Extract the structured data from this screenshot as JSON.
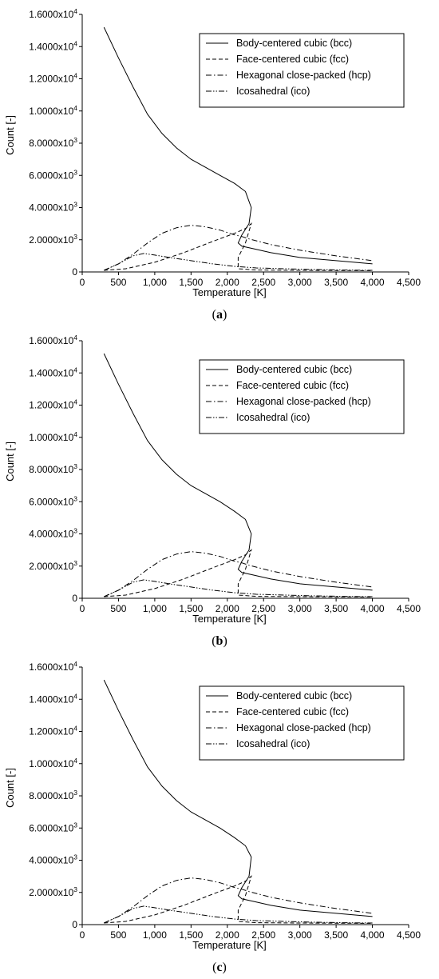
{
  "chart_data": [
    {
      "type": "line",
      "caption": "a",
      "xlabel": "Temperature [K]",
      "ylabel": "Count [-]",
      "xlim": [
        0,
        4500
      ],
      "ylim": [
        0,
        16000
      ],
      "xticks": [
        "0",
        "500",
        "1,000",
        "1,500",
        "2,000",
        "2,500",
        "3,000",
        "3,500",
        "4,000",
        "4,500"
      ],
      "yticks": [
        "0",
        "2.0000x10",
        "4.0000x10",
        "6.0000x10",
        "8.0000x10",
        "1.0000x10",
        "1.2000x10",
        "1.4000x10",
        "1.6000x10"
      ],
      "ytick_exponents": [
        "",
        "3",
        "3",
        "3",
        "3",
        "4",
        "4",
        "4",
        "4"
      ],
      "legend_position": "top-right",
      "grid": false,
      "series": [
        {
          "name": "Body-centered cubic (bcc)",
          "dash": "solid",
          "x": [
            300,
            500,
            700,
            900,
            1100,
            1300,
            1500,
            1700,
            1900,
            2100,
            2250,
            2330,
            2300,
            2200,
            2150,
            2200,
            2350,
            2600,
            3000,
            3500,
            4000
          ],
          "y": [
            15200,
            13300,
            11500,
            9800,
            8600,
            7700,
            7000,
            6500,
            6000,
            5500,
            5000,
            4000,
            3000,
            2300,
            1800,
            1600,
            1450,
            1200,
            900,
            700,
            500
          ]
        },
        {
          "name": "Face-centered cubic (fcc)",
          "dash": "dashed",
          "x": [
            300,
            600,
            1000,
            1400,
            1800,
            2100,
            2250,
            2330,
            2250,
            2150,
            2150,
            2400,
            3000,
            4000
          ],
          "y": [
            100,
            200,
            600,
            1200,
            1900,
            2400,
            2700,
            3000,
            1800,
            900,
            200,
            120,
            100,
            80
          ]
        },
        {
          "name": "Hexagonal close-packed (hcp)",
          "dash": "dashdot",
          "x": [
            300,
            500,
            700,
            900,
            1100,
            1300,
            1500,
            1700,
            1900,
            2100,
            2200,
            2300,
            2600,
            3000,
            3500,
            4000
          ],
          "y": [
            100,
            500,
            1100,
            1800,
            2400,
            2750,
            2900,
            2800,
            2600,
            2300,
            2200,
            2050,
            1700,
            1350,
            1000,
            700
          ]
        },
        {
          "name": "Icosahedral (ico)",
          "dash": "dashdotdot",
          "x": [
            300,
            500,
            700,
            850,
            1000,
            1200,
            1500,
            1800,
            2100,
            2400,
            2800,
            3200,
            3600,
            4000
          ],
          "y": [
            100,
            500,
            1000,
            1150,
            1050,
            900,
            700,
            500,
            350,
            250,
            200,
            150,
            120,
            100
          ]
        }
      ]
    },
    {
      "type": "line",
      "caption": "b",
      "xlabel": "Temperature [K]",
      "ylabel": "Count [-]",
      "xlim": [
        0,
        4500
      ],
      "ylim": [
        0,
        16000
      ],
      "xticks": [
        "0",
        "500",
        "1,000",
        "1,500",
        "2,000",
        "2,500",
        "3,000",
        "3,500",
        "4,000",
        "4,500"
      ],
      "yticks": [
        "0",
        "2.0000x10",
        "4.0000x10",
        "6.0000x10",
        "8.0000x10",
        "1.0000x10",
        "1.2000x10",
        "1.4000x10",
        "1.6000x10"
      ],
      "ytick_exponents": [
        "",
        "3",
        "3",
        "3",
        "3",
        "4",
        "4",
        "4",
        "4"
      ],
      "legend_position": "top-right",
      "grid": false,
      "series": [
        {
          "name": "Body-centered cubic (bcc)",
          "dash": "solid",
          "x": [
            300,
            500,
            700,
            900,
            1100,
            1300,
            1500,
            1700,
            1900,
            2100,
            2250,
            2330,
            2300,
            2200,
            2150,
            2200,
            2350,
            2600,
            3000,
            3500,
            4000
          ],
          "y": [
            15200,
            13300,
            11500,
            9800,
            8600,
            7700,
            7000,
            6500,
            6000,
            5400,
            4900,
            4000,
            3000,
            2300,
            1800,
            1600,
            1450,
            1200,
            900,
            700,
            500
          ]
        },
        {
          "name": "Face-centered cubic (fcc)",
          "dash": "dashed",
          "x": [
            300,
            600,
            1000,
            1400,
            1800,
            2100,
            2250,
            2330,
            2250,
            2150,
            2150,
            2400,
            3000,
            4000
          ],
          "y": [
            100,
            200,
            600,
            1200,
            1900,
            2400,
            2700,
            3000,
            1800,
            900,
            200,
            120,
            100,
            80
          ]
        },
        {
          "name": "Hexagonal close-packed (hcp)",
          "dash": "dashdot",
          "x": [
            300,
            500,
            700,
            900,
            1100,
            1300,
            1500,
            1700,
            1900,
            2100,
            2200,
            2300,
            2600,
            3000,
            3500,
            4000
          ],
          "y": [
            100,
            500,
            1100,
            1800,
            2400,
            2750,
            2900,
            2800,
            2600,
            2300,
            2200,
            2050,
            1700,
            1350,
            1000,
            700
          ]
        },
        {
          "name": "Icosahedral (ico)",
          "dash": "dashdotdot",
          "x": [
            300,
            500,
            700,
            850,
            1000,
            1200,
            1500,
            1800,
            2100,
            2400,
            2800,
            3200,
            3600,
            4000
          ],
          "y": [
            100,
            500,
            1000,
            1150,
            1050,
            900,
            700,
            500,
            350,
            250,
            200,
            150,
            120,
            100
          ]
        }
      ]
    },
    {
      "type": "line",
      "caption": "c",
      "xlabel": "Temperature [K]",
      "ylabel": "Count [-]",
      "xlim": [
        0,
        4500
      ],
      "ylim": [
        0,
        16000
      ],
      "xticks": [
        "0",
        "500",
        "1,000",
        "1,500",
        "2,000",
        "2,500",
        "3,000",
        "3,500",
        "4,000",
        "4,500"
      ],
      "yticks": [
        "0",
        "2.0000x10",
        "4.0000x10",
        "6.0000x10",
        "8.0000x10",
        "1.0000x10",
        "1.2000x10",
        "1.4000x10",
        "1.6000x10"
      ],
      "ytick_exponents": [
        "",
        "3",
        "3",
        "3",
        "3",
        "4",
        "4",
        "4",
        "4"
      ],
      "legend_position": "top-right",
      "grid": false,
      "series": [
        {
          "name": "Body-centered cubic (bcc)",
          "dash": "solid",
          "x": [
            300,
            500,
            700,
            900,
            1100,
            1300,
            1500,
            1700,
            1900,
            2100,
            2250,
            2330,
            2300,
            2200,
            2150,
            2200,
            2350,
            2600,
            3000,
            3500,
            4000
          ],
          "y": [
            15200,
            13300,
            11500,
            9800,
            8600,
            7700,
            7000,
            6500,
            6000,
            5400,
            4900,
            4200,
            3000,
            2300,
            1800,
            1600,
            1450,
            1200,
            900,
            700,
            500
          ]
        },
        {
          "name": "Face-centered cubic (fcc)",
          "dash": "dashed",
          "x": [
            300,
            600,
            1000,
            1400,
            1800,
            2100,
            2250,
            2330,
            2250,
            2150,
            2150,
            2400,
            3000,
            4000
          ],
          "y": [
            100,
            200,
            600,
            1200,
            1900,
            2400,
            2700,
            3000,
            1800,
            900,
            200,
            120,
            100,
            80
          ]
        },
        {
          "name": "Hexagonal close-packed (hcp)",
          "dash": "dashdot",
          "x": [
            300,
            500,
            700,
            900,
            1100,
            1300,
            1500,
            1700,
            1900,
            2100,
            2200,
            2300,
            2600,
            3000,
            3500,
            4000
          ],
          "y": [
            100,
            500,
            1100,
            1800,
            2400,
            2750,
            2900,
            2800,
            2600,
            2300,
            2200,
            2050,
            1700,
            1350,
            1000,
            700
          ]
        },
        {
          "name": "Icosahedral (ico)",
          "dash": "dashdotdot",
          "x": [
            300,
            500,
            700,
            850,
            1000,
            1200,
            1500,
            1800,
            2100,
            2400,
            2800,
            3200,
            3600,
            4000
          ],
          "y": [
            100,
            500,
            1000,
            1150,
            1050,
            900,
            700,
            500,
            350,
            250,
            200,
            150,
            120,
            100
          ]
        }
      ]
    }
  ]
}
